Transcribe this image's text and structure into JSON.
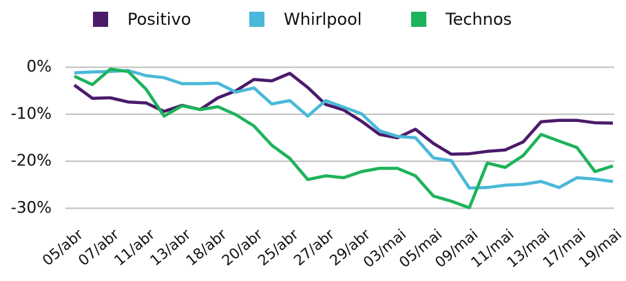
{
  "chart_data": {
    "type": "line",
    "categories": [
      "05/abr",
      null,
      "07/abr",
      null,
      "11/abr",
      null,
      "13/abr",
      null,
      "18/abr",
      null,
      "20/abr",
      null,
      "25/abr",
      null,
      "27/abr",
      null,
      "29/abr",
      null,
      "03/mai",
      null,
      "05/mai",
      null,
      "09/mai",
      null,
      "11/mai",
      null,
      "13/mai",
      null,
      "17/mai",
      null,
      "19/mai"
    ],
    "series": [
      {
        "name": "Positivo",
        "color": "#4b1a6b",
        "values": [
          -3.8,
          -6.6,
          -6.5,
          -7.4,
          -7.6,
          -9.4,
          -8.1,
          -9.0,
          -6.5,
          -5.0,
          -2.6,
          -2.9,
          -1.3,
          -4.3,
          -7.9,
          -9.1,
          -11.5,
          -14.3,
          -15.0,
          -13.2,
          -16.2,
          -18.5,
          -18.4,
          -17.9,
          -17.6,
          -15.9,
          -11.6,
          -11.3,
          -11.3,
          -11.8,
          -11.9
        ]
      },
      {
        "name": "Whirlpool",
        "color": "#4ab8d8",
        "values": [
          -1.2,
          -1.0,
          -0.9,
          -0.7,
          -1.8,
          -2.2,
          -3.5,
          -3.5,
          -3.4,
          -5.3,
          -4.4,
          -7.8,
          -7.1,
          -10.4,
          -7.1,
          -8.5,
          -9.9,
          -13.5,
          -14.7,
          -15.0,
          -19.3,
          -19.9,
          -25.7,
          -25.6,
          -25.1,
          -24.9,
          -24.3,
          -25.6,
          -23.5,
          -23.8,
          -24.3
        ]
      },
      {
        "name": "Technos",
        "color": "#1db35a",
        "values": [
          -1.9,
          -3.7,
          -0.4,
          -0.9,
          -4.7,
          -10.4,
          -8.2,
          -9.0,
          -8.4,
          -10.1,
          -12.5,
          -16.6,
          -19.4,
          -23.9,
          -23.1,
          -23.5,
          -22.2,
          -21.5,
          -21.5,
          -23.1,
          -27.4,
          -28.5,
          -29.9,
          -20.4,
          -21.3,
          -18.8,
          -14.3,
          -15.7,
          -17.1,
          -22.2,
          -21.0
        ]
      }
    ],
    "ylim": [
      -32,
      2
    ],
    "yticks": [
      {
        "value": 0,
        "label": "0%"
      },
      {
        "value": -10,
        "label": "-10%"
      },
      {
        "value": -20,
        "label": "-20%"
      },
      {
        "value": -30,
        "label": "-30%"
      }
    ],
    "grid": true,
    "legend": "top"
  }
}
